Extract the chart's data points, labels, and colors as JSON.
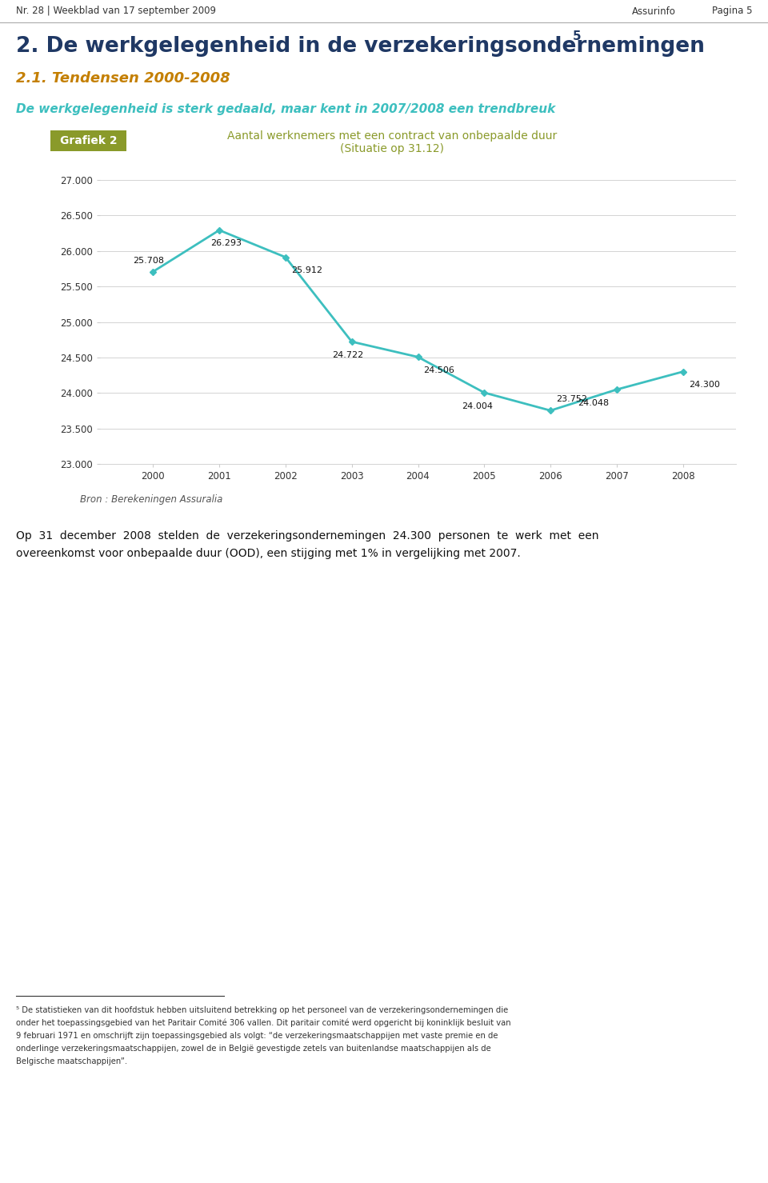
{
  "page_header_left": "Nr. 28 | Weekblad van 17 september 2009",
  "page_header_right_1": "Assurinfo",
  "page_header_right_2": "Pagina 5",
  "section_title": "2. De werkgelegenheid in de verzekeringsondernemingen",
  "section_title_superscript": "5",
  "subsection_title": "2.1. Tendensen 2000-2008",
  "subtitle_italic": "De werkgelegenheid is sterk gedaald, maar kent in 2007/2008 een trendbreuk",
  "grafiek_label": "Grafiek 2",
  "grafiek_title_line1": "Aantal werknemers met een contract van onbepaalde duur",
  "grafiek_title_line2": "(Situatie op 31.12)",
  "years": [
    2000,
    2001,
    2002,
    2003,
    2004,
    2005,
    2006,
    2007,
    2008
  ],
  "values": [
    25708,
    26293,
    25912,
    24722,
    24506,
    24004,
    23752,
    24048,
    24300
  ],
  "line_color": "#3dbfbf",
  "marker_style": "D",
  "marker_size": 4,
  "ylim_min": 23000,
  "ylim_max": 27000,
  "yticks": [
    23000,
    23500,
    24000,
    24500,
    25000,
    25500,
    26000,
    26500,
    27000
  ],
  "ytick_labels": [
    "23.000",
    "23.500",
    "24.000",
    "24.500",
    "25.000",
    "25.500",
    "26.000",
    "26.500",
    "27.000"
  ],
  "data_labels": [
    "25.708",
    "26.293",
    "25.912",
    "24.722",
    "24.506",
    "24.004",
    "23.752",
    "24.048",
    "24.300"
  ],
  "source_text": "Bron : Berekeningen Assuralia",
  "body_text_line1": "Op  31  december  2008  stelden  de  verzekeringsondernemingen  24.300  personen  te  werk  met  een",
  "body_text_line2": "overeenkomst voor onbepaalde duur (OOD), een stijging met 1% in vergelijking met 2007.",
  "footnote_line1": "⁵ De statistieken van dit hoofdstuk hebben uitsluitend betrekking op het personeel van de verzekeringsondernemingen die",
  "footnote_line2": "onder het toepassingsgebied van het Paritair Comité 306 vallen. Dit paritair comité werd opgericht bij koninklijk besluit van",
  "footnote_line3": "9 februari 1971 en omschrijft zijn toepassingsgebied als volgt: “de verzekeringsmaatschappijen met vaste premie en de",
  "footnote_line4": "onderlinge verzekeringsmaatschappijen, zowel de in België gevestigde zetels van buitenlandse maatschappijen als de",
  "footnote_line5": "Belgische maatschappijen”.",
  "bg_color": "#ffffff",
  "header_line_color": "#aaaaaa",
  "grid_color": "#cccccc",
  "section_title_color": "#1f3864",
  "subsection_title_color": "#c47f00",
  "subtitle_color": "#3dbfbf",
  "grafiek_bg_color": "#8a9a2a",
  "grafiek_text_color": "#ffffff",
  "grafiek_chart_title_color": "#8a9a2a"
}
